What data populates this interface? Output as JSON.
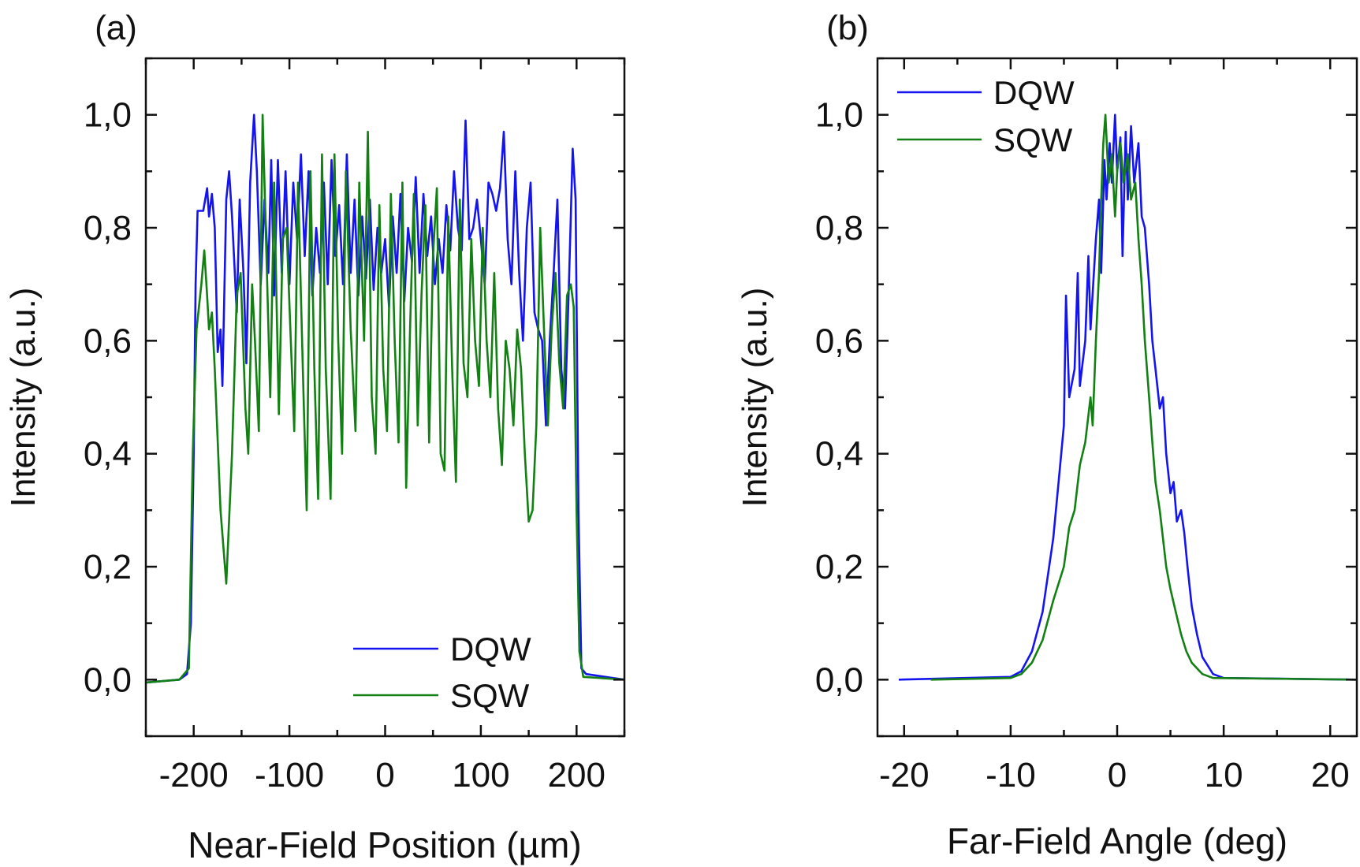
{
  "chart_data": [
    {
      "panel_label": "(a)",
      "type": "line",
      "xlabel": "Near-Field Position (µm)",
      "ylabel": "Intensity (a.u.)",
      "xlim": [
        -250,
        250
      ],
      "ylim": [
        -0.1,
        1.1
      ],
      "xticks": [
        -200,
        -100,
        0,
        100,
        200
      ],
      "xtick_labels": [
        "-200",
        "-100",
        "0",
        "100",
        "200"
      ],
      "yticks": [
        0,
        0.2,
        0.4,
        0.6,
        0.8,
        1.0
      ],
      "ytick_labels": [
        "0,0",
        "0,2",
        "0,4",
        "0,6",
        "0,8",
        "1,0"
      ],
      "grid": false,
      "legend_position": "bottom-right",
      "series": [
        {
          "name": "DQW",
          "color": "#1414f0",
          "x": [
            -250,
            -215,
            -207,
            -203,
            -200,
            -198,
            -196,
            -190,
            -186,
            -184,
            -181,
            -178,
            -175,
            -172,
            -170,
            -166,
            -163,
            -160,
            -155,
            -152,
            -148,
            -145,
            -141,
            -137,
            -134,
            -130,
            -126,
            -122,
            -119,
            -116,
            -112,
            -108,
            -104,
            -100,
            -96,
            -92,
            -88,
            -84,
            -80,
            -76,
            -72,
            -68,
            -64,
            -60,
            -56,
            -52,
            -48,
            -44,
            -40,
            -36,
            -32,
            -28,
            -24,
            -20,
            -16,
            -12,
            -8,
            -4,
            0,
            4,
            8,
            12,
            16,
            20,
            24,
            28,
            32,
            36,
            40,
            44,
            48,
            52,
            56,
            60,
            64,
            68,
            72,
            76,
            80,
            84,
            88,
            92,
            96,
            100,
            104,
            108,
            112,
            116,
            120,
            124,
            128,
            132,
            136,
            140,
            144,
            148,
            152,
            156,
            160,
            164,
            168,
            172,
            176,
            180,
            184,
            188,
            192,
            196,
            199,
            202,
            205,
            210,
            250
          ],
          "y": [
            -0.005,
            0,
            0.01,
            0.1,
            0.4,
            0.7,
            0.83,
            0.83,
            0.87,
            0.82,
            0.86,
            0.8,
            0.58,
            0.62,
            0.52,
            0.85,
            0.9,
            0.82,
            0.65,
            0.85,
            0.72,
            0.56,
            0.88,
            1.0,
            0.9,
            0.7,
            0.85,
            0.72,
            0.92,
            0.68,
            0.92,
            0.72,
            0.9,
            0.7,
            0.88,
            0.78,
            0.93,
            0.75,
            0.9,
            0.68,
            0.8,
            0.72,
            0.88,
            0.7,
            0.92,
            0.75,
            0.84,
            0.7,
            0.93,
            0.72,
            0.85,
            0.68,
            0.82,
            0.71,
            0.85,
            0.69,
            0.8,
            0.72,
            0.78,
            0.66,
            0.82,
            0.72,
            0.86,
            0.67,
            0.8,
            0.74,
            0.89,
            0.72,
            0.86,
            0.75,
            0.82,
            0.7,
            0.78,
            0.72,
            0.84,
            0.76,
            0.9,
            0.8,
            0.76,
            0.99,
            0.78,
            0.8,
            0.85,
            0.78,
            0.7,
            0.88,
            0.86,
            0.83,
            0.87,
            0.97,
            0.78,
            0.7,
            0.9,
            0.72,
            0.6,
            0.8,
            0.88,
            0.65,
            0.62,
            0.6,
            0.45,
            0.6,
            0.72,
            0.85,
            0.55,
            0.48,
            0.7,
            0.94,
            0.85,
            0.3,
            0.02,
            0.01,
            0
          ]
        },
        {
          "name": "SQW",
          "color": "#128012",
          "x": [
            -250,
            -215,
            -205,
            -201,
            -197,
            -192,
            -189,
            -186,
            -184,
            -181,
            -178,
            -172,
            -166,
            -160,
            -155,
            -151,
            -146,
            -143,
            -139,
            -136,
            -132,
            -128,
            -124,
            -120,
            -116,
            -111,
            -107,
            -103,
            -99,
            -95,
            -91,
            -86,
            -82,
            -78,
            -74,
            -70,
            -66,
            -62,
            -57,
            -53,
            -49,
            -45,
            -41,
            -36,
            -31,
            -27,
            -22,
            -18,
            -14,
            -10,
            -6,
            -2,
            2,
            6,
            10,
            14,
            18,
            22,
            26,
            30,
            34,
            38,
            42,
            46,
            50,
            54,
            58,
            62,
            66,
            70,
            74,
            78,
            82,
            86,
            90,
            94,
            98,
            102,
            106,
            110,
            114,
            118,
            122,
            126,
            130,
            134,
            138,
            142,
            146,
            150,
            154,
            158,
            162,
            166,
            170,
            174,
            178,
            182,
            186,
            190,
            194,
            197,
            200,
            203,
            207,
            250
          ],
          "y": [
            -0.005,
            0,
            0.02,
            0.4,
            0.62,
            0.7,
            0.76,
            0.68,
            0.62,
            0.65,
            0.55,
            0.3,
            0.17,
            0.4,
            0.68,
            0.72,
            0.48,
            0.4,
            0.7,
            0.6,
            0.44,
            1.0,
            0.75,
            0.5,
            0.88,
            0.47,
            0.78,
            0.8,
            0.62,
            0.44,
            0.88,
            0.55,
            0.3,
            0.9,
            0.55,
            0.32,
            0.93,
            0.55,
            0.32,
            0.93,
            0.6,
            0.4,
            0.9,
            0.62,
            0.44,
            0.88,
            0.6,
            0.97,
            0.5,
            0.4,
            0.84,
            0.55,
            0.44,
            0.86,
            0.6,
            0.42,
            0.88,
            0.34,
            0.62,
            0.86,
            0.45,
            0.68,
            0.84,
            0.42,
            0.75,
            0.87,
            0.4,
            0.37,
            0.82,
            0.55,
            0.35,
            0.85,
            0.56,
            0.5,
            0.78,
            0.6,
            0.52,
            0.8,
            0.6,
            0.5,
            0.72,
            0.48,
            0.38,
            0.6,
            0.55,
            0.45,
            0.62,
            0.55,
            0.4,
            0.28,
            0.3,
            0.45,
            0.8,
            0.62,
            0.45,
            0.62,
            0.72,
            0.56,
            0.48,
            0.68,
            0.7,
            0.66,
            0.3,
            0.05,
            0.005,
            0
          ]
        }
      ]
    },
    {
      "panel_label": "(b)",
      "type": "line",
      "xlabel": "Far-Field Angle (deg)",
      "ylabel": "Intensity (a.u.)",
      "xlim": [
        -22.5,
        22.5
      ],
      "ylim": [
        -0.1,
        1.1
      ],
      "xticks": [
        -20,
        -10,
        0,
        10,
        20
      ],
      "xtick_labels": [
        "-20",
        "-10",
        "0",
        "10",
        "20"
      ],
      "yticks": [
        0,
        0.2,
        0.4,
        0.6,
        0.8,
        1.0
      ],
      "ytick_labels": [
        "0,0",
        "0,2",
        "0,4",
        "0,6",
        "0,8",
        "1,0"
      ],
      "grid": false,
      "legend_position": "top-left",
      "series": [
        {
          "name": "DQW",
          "color": "#1414f0",
          "x": [
            -20.5,
            -10,
            -9,
            -8,
            -7,
            -6,
            -5.5,
            -5,
            -4.8,
            -4.5,
            -4,
            -3.7,
            -3.5,
            -3,
            -2.7,
            -2.5,
            -2,
            -1.7,
            -1.5,
            -1.2,
            -1,
            -0.7,
            -0.5,
            -0.2,
            0,
            0.3,
            0.5,
            0.8,
            1,
            1.3,
            1.6,
            2,
            2.3,
            2.6,
            3,
            3.3,
            3.6,
            4,
            4.3,
            4.6,
            5,
            5.3,
            5.6,
            6,
            6.3,
            6.6,
            7,
            7.5,
            8,
            9,
            10,
            22.5
          ],
          "y": [
            0,
            0.005,
            0.015,
            0.05,
            0.12,
            0.25,
            0.35,
            0.45,
            0.68,
            0.5,
            0.55,
            0.72,
            0.52,
            0.6,
            0.75,
            0.62,
            0.78,
            0.85,
            0.72,
            0.92,
            0.85,
            0.95,
            0.88,
            1.0,
            0.9,
            0.96,
            0.75,
            0.97,
            0.85,
            0.98,
            0.88,
            0.95,
            0.82,
            0.8,
            0.7,
            0.6,
            0.55,
            0.48,
            0.5,
            0.4,
            0.33,
            0.35,
            0.28,
            0.3,
            0.26,
            0.2,
            0.13,
            0.08,
            0.04,
            0.01,
            0.003,
            0
          ]
        },
        {
          "name": "SQW",
          "color": "#128012",
          "x": [
            -17.5,
            -10,
            -9,
            -8,
            -7,
            -6,
            -5,
            -4.5,
            -4,
            -3.5,
            -3,
            -2.5,
            -2.3,
            -2,
            -1.7,
            -1.5,
            -1.3,
            -1.1,
            -0.8,
            -0.5,
            -0.2,
            0,
            0.3,
            0.6,
            1,
            1.3,
            1.7,
            2,
            2.3,
            2.6,
            3,
            3.3,
            3.6,
            4,
            4.3,
            4.6,
            5,
            5.5,
            6,
            6.5,
            7,
            8,
            9,
            22.5
          ],
          "y": [
            0,
            0.003,
            0.01,
            0.03,
            0.07,
            0.14,
            0.2,
            0.27,
            0.3,
            0.38,
            0.42,
            0.5,
            0.45,
            0.6,
            0.72,
            0.85,
            0.95,
            1.0,
            0.88,
            0.93,
            0.82,
            0.9,
            0.95,
            0.88,
            0.93,
            0.85,
            0.88,
            0.78,
            0.7,
            0.6,
            0.5,
            0.42,
            0.35,
            0.3,
            0.25,
            0.2,
            0.16,
            0.12,
            0.08,
            0.05,
            0.03,
            0.01,
            0.003,
            0
          ]
        }
      ]
    }
  ]
}
